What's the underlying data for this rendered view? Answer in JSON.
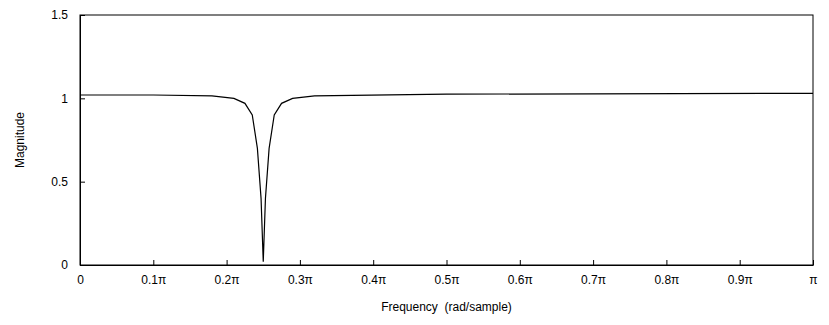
{
  "chart_data": {
    "type": "line",
    "x_label": "Frequency  (rad/sample)",
    "y_label": "Magnitude",
    "x": [
      0,
      0.3142,
      0.5655,
      0.6597,
      0.7069,
      0.7383,
      0.7603,
      0.776,
      0.7854,
      0.7948,
      0.8105,
      0.8325,
      0.8639,
      0.9111,
      1.0053,
      1.5708,
      3.1416
    ],
    "values": [
      1.02,
      1.02,
      1.015,
      1.0,
      0.97,
      0.9,
      0.7,
      0.4,
      0.02,
      0.4,
      0.7,
      0.9,
      0.97,
      1.0,
      1.015,
      1.025,
      1.03
    ],
    "color": "#000000",
    "xlim": [
      0,
      3.141592653589793
    ],
    "ylim": [
      0,
      1.5
    ],
    "xticks": [
      0,
      {
        "value": 0.3141592653589793,
        "label": "0.1π"
      },
      {
        "value": 0.6283185307179586,
        "label": "0.2π"
      },
      {
        "value": 0.9424777960769379,
        "label": "0.3π"
      },
      {
        "value": 1.2566370614359172,
        "label": "0.4π"
      },
      {
        "value": 1.5707963267948966,
        "label": "0.5π"
      },
      {
        "value": 1.8849555921538759,
        "label": "0.6π"
      },
      {
        "value": 2.199114857512855,
        "label": "0.7π"
      },
      {
        "value": 2.5132741228718345,
        "label": "0.8π"
      },
      {
        "value": 2.827433388230814,
        "label": "0.9π"
      },
      {
        "value": 3.141592653589793,
        "label": "π"
      }
    ],
    "yticks": [
      0,
      0.5,
      1,
      1.5
    ],
    "grid": false
  }
}
